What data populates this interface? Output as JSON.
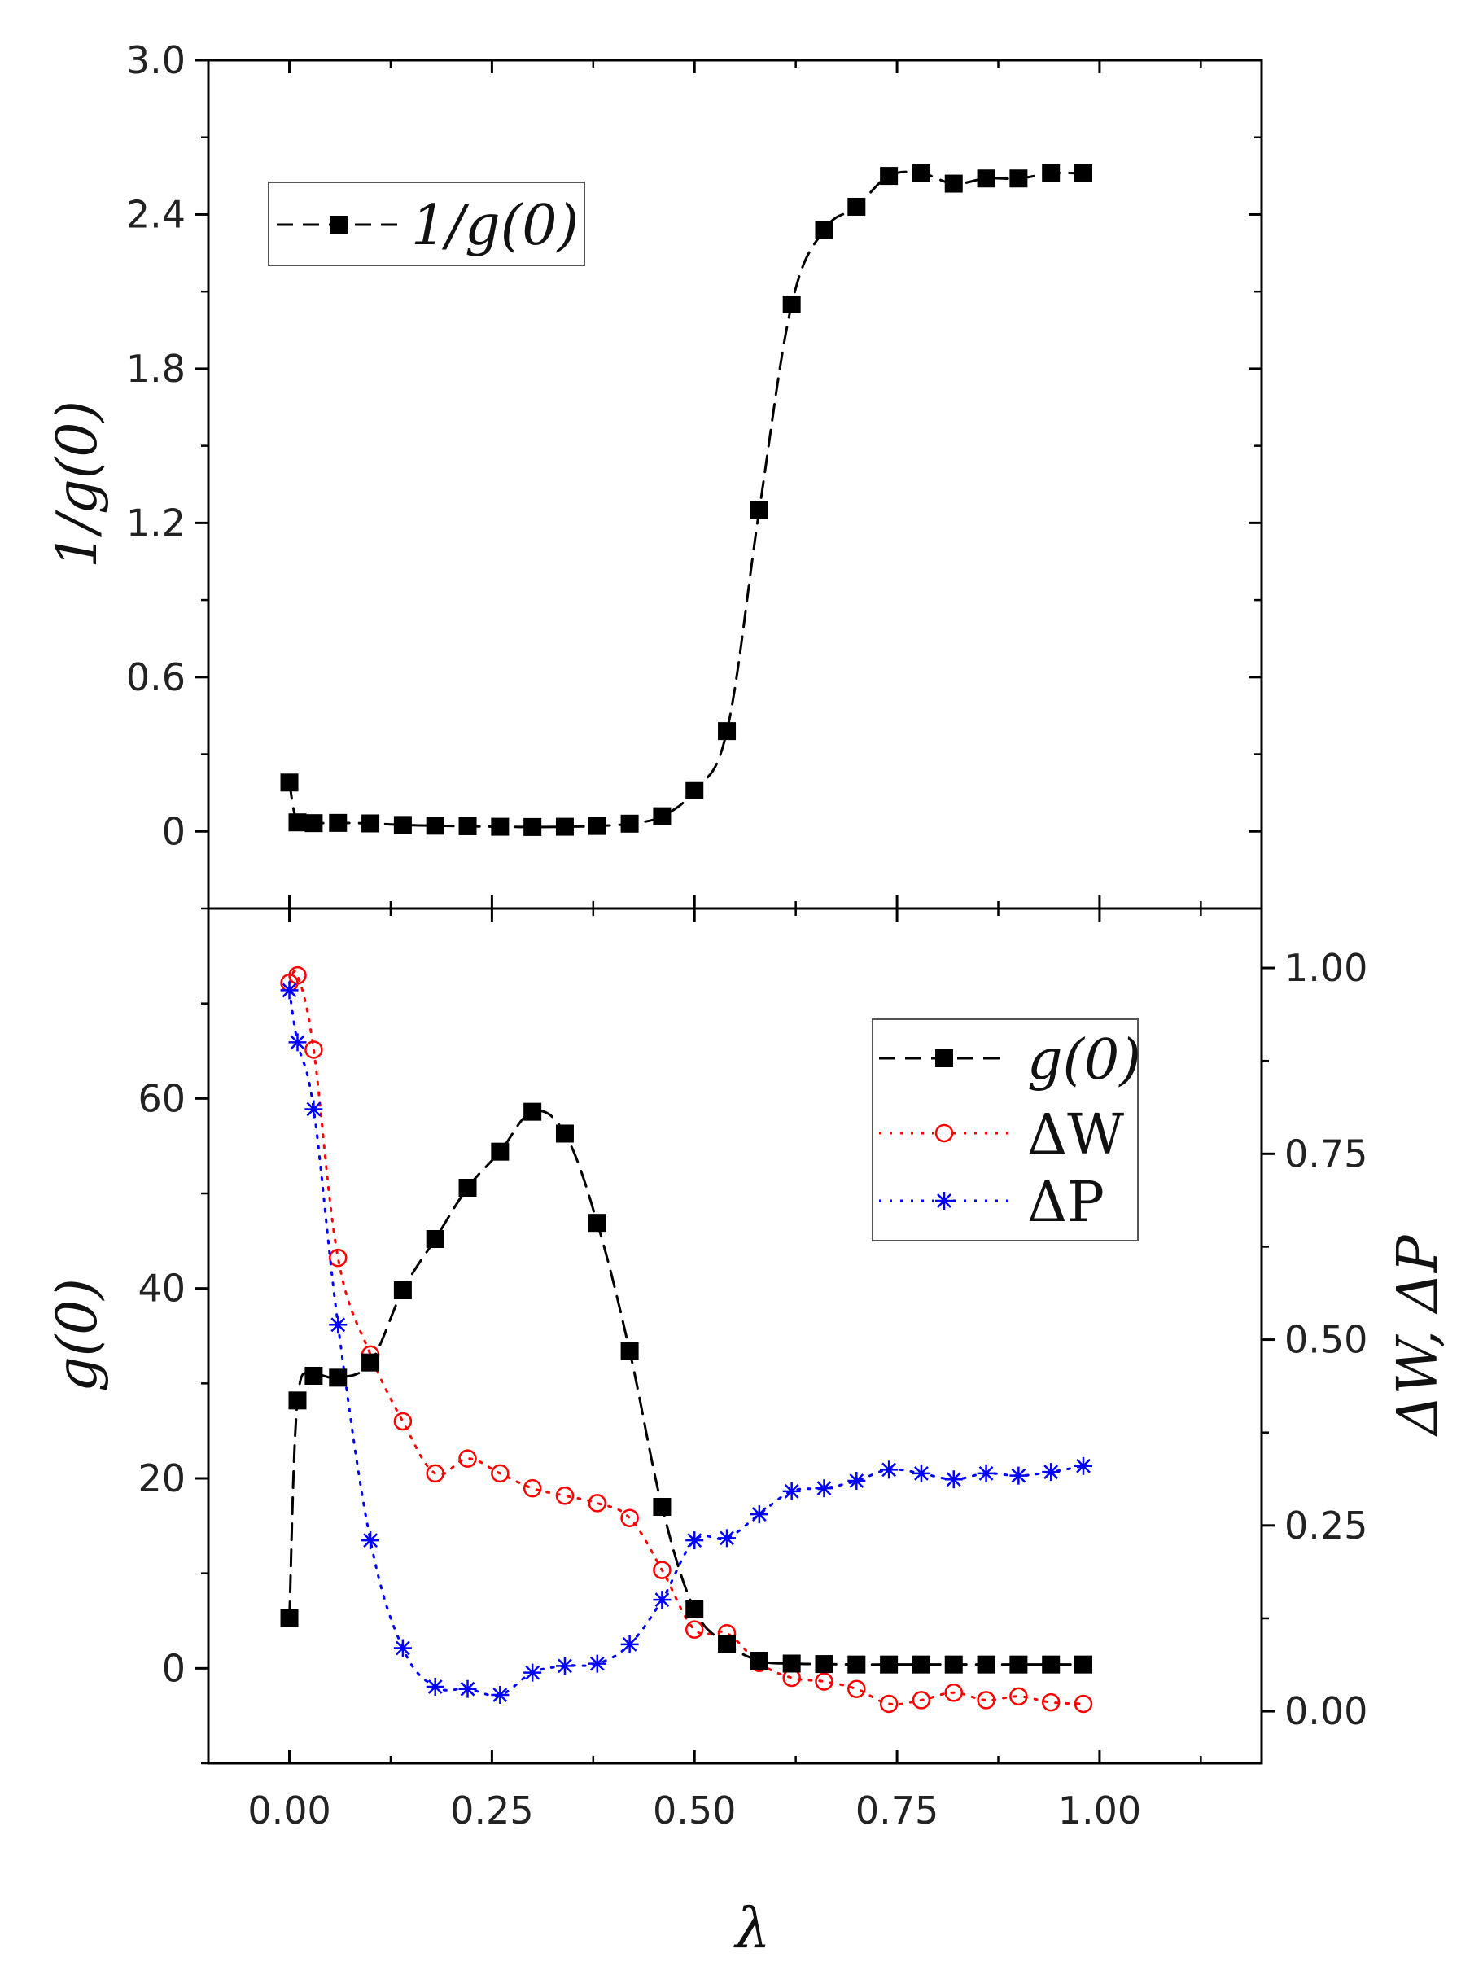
{
  "figure": {
    "xlabel": "λ",
    "x_ticks": [
      "0.00",
      "0.25",
      "0.50",
      "0.75",
      "1.00"
    ],
    "xlim": [
      -0.1,
      1.2
    ]
  },
  "chart_data": [
    {
      "type": "line",
      "panel": "top",
      "ylabel": "1/g(0)",
      "ylim": [
        -0.3,
        3.0
      ],
      "y_ticks": [
        "0",
        "0.6",
        "1.2",
        "1.8",
        "2.4",
        "3.0"
      ],
      "legend_position": "top-left",
      "series": [
        {
          "name": "1/g(0)",
          "color": "#000000",
          "marker": "filled-square",
          "line": "dashed",
          "x": [
            0.0,
            0.01,
            0.03,
            0.06,
            0.1,
            0.14,
            0.18,
            0.22,
            0.26,
            0.3,
            0.34,
            0.38,
            0.42,
            0.46,
            0.5,
            0.54,
            0.58,
            0.62,
            0.66,
            0.7,
            0.74,
            0.78,
            0.82,
            0.86,
            0.9,
            0.94,
            0.98
          ],
          "y": [
            0.19,
            0.035,
            0.032,
            0.033,
            0.031,
            0.025,
            0.022,
            0.02,
            0.018,
            0.017,
            0.018,
            0.021,
            0.03,
            0.059,
            0.16,
            0.39,
            1.25,
            2.05,
            2.34,
            2.43,
            2.55,
            2.56,
            2.52,
            2.54,
            2.54,
            2.56,
            2.56
          ]
        }
      ]
    },
    {
      "type": "line",
      "panel": "bottom",
      "ylabel": "g(0)",
      "ylim": [
        -10,
        80
      ],
      "y_ticks": [
        "0",
        "20",
        "40",
        "60"
      ],
      "y2label": "ΔW, ΔP",
      "y2lim": [
        -0.07,
        1.08
      ],
      "y2_ticks": [
        "0.00",
        "0.25",
        "0.50",
        "0.75",
        "1.00"
      ],
      "legend_position": "top-right",
      "series": [
        {
          "name": "g(0)",
          "axis": "left",
          "color": "#000000",
          "marker": "filled-square",
          "line": "dashed",
          "x": [
            0.0,
            0.01,
            0.03,
            0.06,
            0.1,
            0.14,
            0.18,
            0.22,
            0.26,
            0.3,
            0.34,
            0.38,
            0.42,
            0.46,
            0.5,
            0.54,
            0.58,
            0.62,
            0.66,
            0.7,
            0.74,
            0.78,
            0.82,
            0.86,
            0.9,
            0.94,
            0.98
          ],
          "y": [
            5.3,
            28.2,
            30.8,
            30.6,
            32.2,
            39.8,
            45.2,
            50.6,
            54.4,
            58.6,
            56.3,
            46.9,
            33.4,
            17.0,
            6.2,
            2.6,
            0.8,
            0.5,
            0.45,
            0.4,
            0.4,
            0.4,
            0.4,
            0.4,
            0.4,
            0.4,
            0.4
          ]
        },
        {
          "name": "ΔW",
          "axis": "right",
          "color": "#ff0000",
          "marker": "open-circle",
          "line": "dotted",
          "x": [
            0.0,
            0.01,
            0.03,
            0.06,
            0.1,
            0.14,
            0.18,
            0.22,
            0.26,
            0.3,
            0.34,
            0.38,
            0.42,
            0.46,
            0.5,
            0.54,
            0.58,
            0.62,
            0.66,
            0.7,
            0.74,
            0.78,
            0.82,
            0.86,
            0.9,
            0.94,
            0.98
          ],
          "y": [
            0.98,
            0.99,
            0.89,
            0.61,
            0.48,
            0.39,
            0.32,
            0.34,
            0.32,
            0.3,
            0.29,
            0.28,
            0.26,
            0.19,
            0.11,
            0.105,
            0.065,
            0.045,
            0.04,
            0.03,
            0.01,
            0.015,
            0.025,
            0.015,
            0.02,
            0.012,
            0.01
          ]
        },
        {
          "name": "ΔP",
          "axis": "right",
          "color": "#0000ff",
          "marker": "asterisk",
          "line": "dotted",
          "x": [
            0.0,
            0.01,
            0.03,
            0.06,
            0.1,
            0.14,
            0.18,
            0.22,
            0.26,
            0.3,
            0.34,
            0.38,
            0.42,
            0.46,
            0.5,
            0.54,
            0.58,
            0.62,
            0.66,
            0.7,
            0.74,
            0.78,
            0.82,
            0.86,
            0.9,
            0.94,
            0.98
          ],
          "y": [
            0.97,
            0.9,
            0.81,
            0.52,
            0.23,
            0.085,
            0.033,
            0.03,
            0.022,
            0.052,
            0.061,
            0.064,
            0.09,
            0.15,
            0.23,
            0.233,
            0.265,
            0.296,
            0.3,
            0.31,
            0.325,
            0.32,
            0.312,
            0.32,
            0.317,
            0.322,
            0.33
          ]
        }
      ]
    }
  ]
}
